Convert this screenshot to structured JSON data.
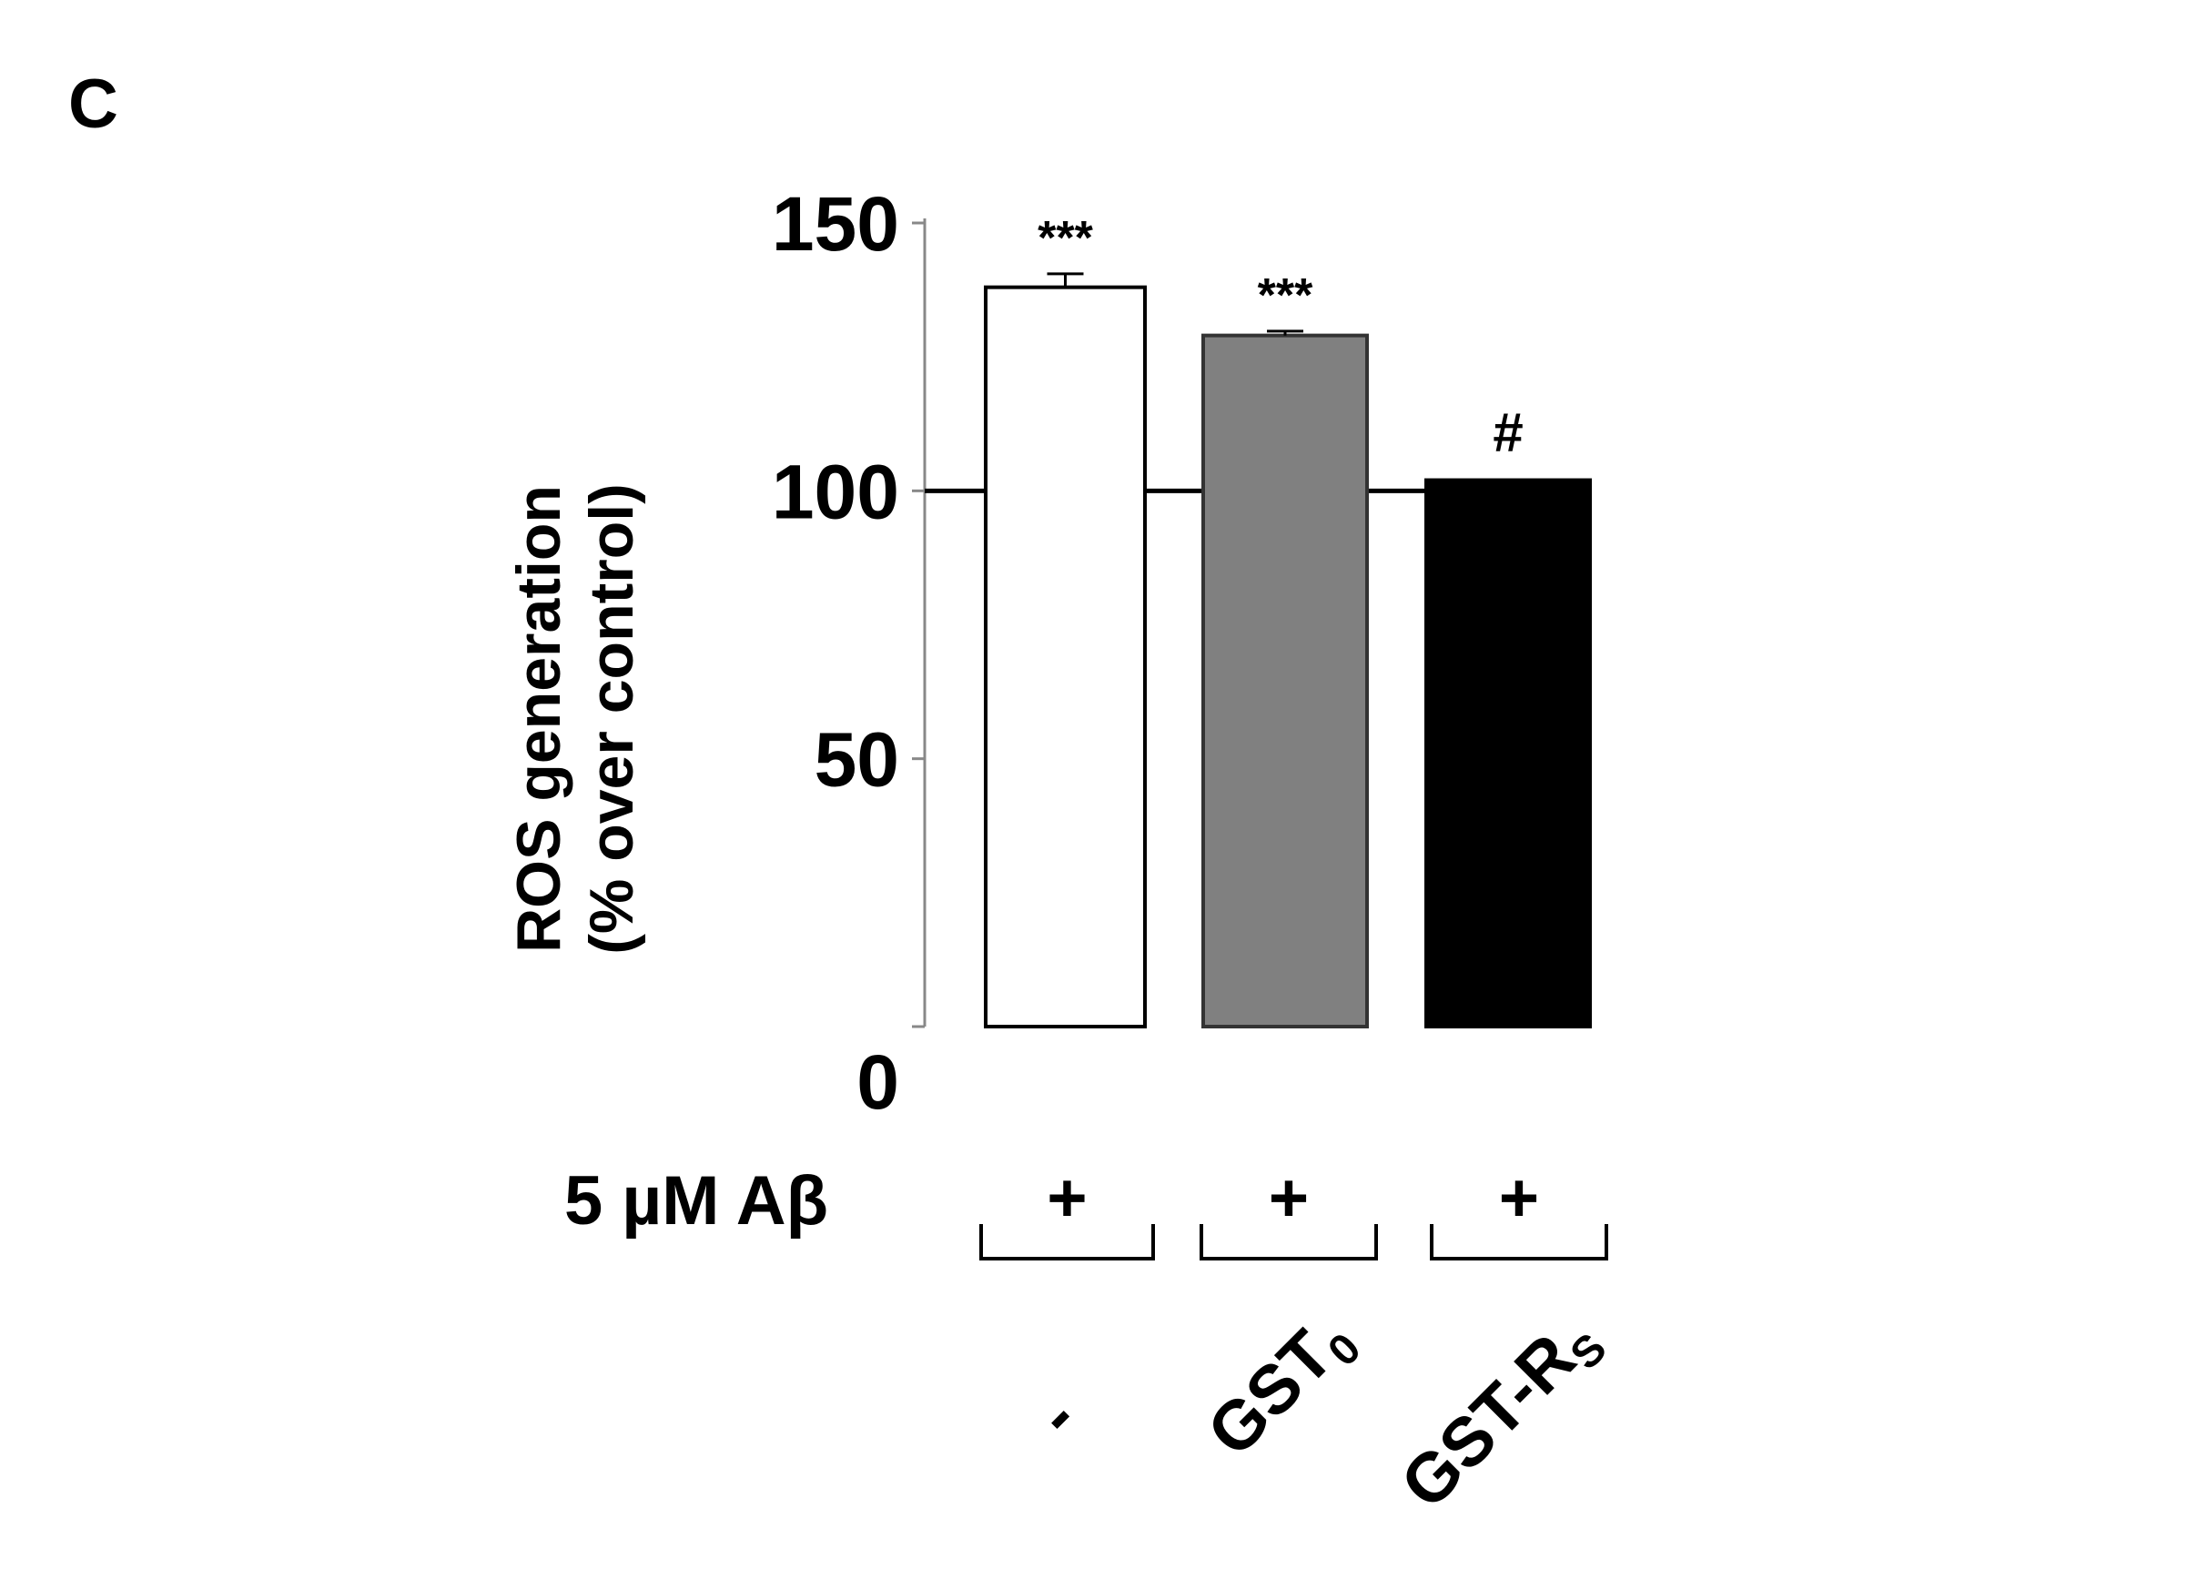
{
  "chart_data": {
    "type": "bar",
    "panel_label": "C",
    "ylabel": [
      "ROS generation",
      "(% over control)"
    ],
    "ylim": [
      0,
      150
    ],
    "yticks": [
      0,
      50,
      100,
      150
    ],
    "reference_line": 100,
    "categories": [
      "-",
      "GST0",
      "GST-RS"
    ],
    "category_labels": [
      {
        "main": "-",
        "sub": ""
      },
      {
        "main": "GST",
        "sub": "0"
      },
      {
        "main": "GST-R",
        "sub": "S"
      }
    ],
    "values": [
      138,
      129,
      102
    ],
    "errors": [
      2.5,
      0.8,
      0
    ],
    "colors": [
      "#ffffff",
      "#808080",
      "#000000"
    ],
    "annotations": [
      "***",
      "***",
      "#"
    ],
    "treatment_label": "5 µM Aβ",
    "treatment_marks": [
      "+",
      "+",
      "+"
    ]
  }
}
